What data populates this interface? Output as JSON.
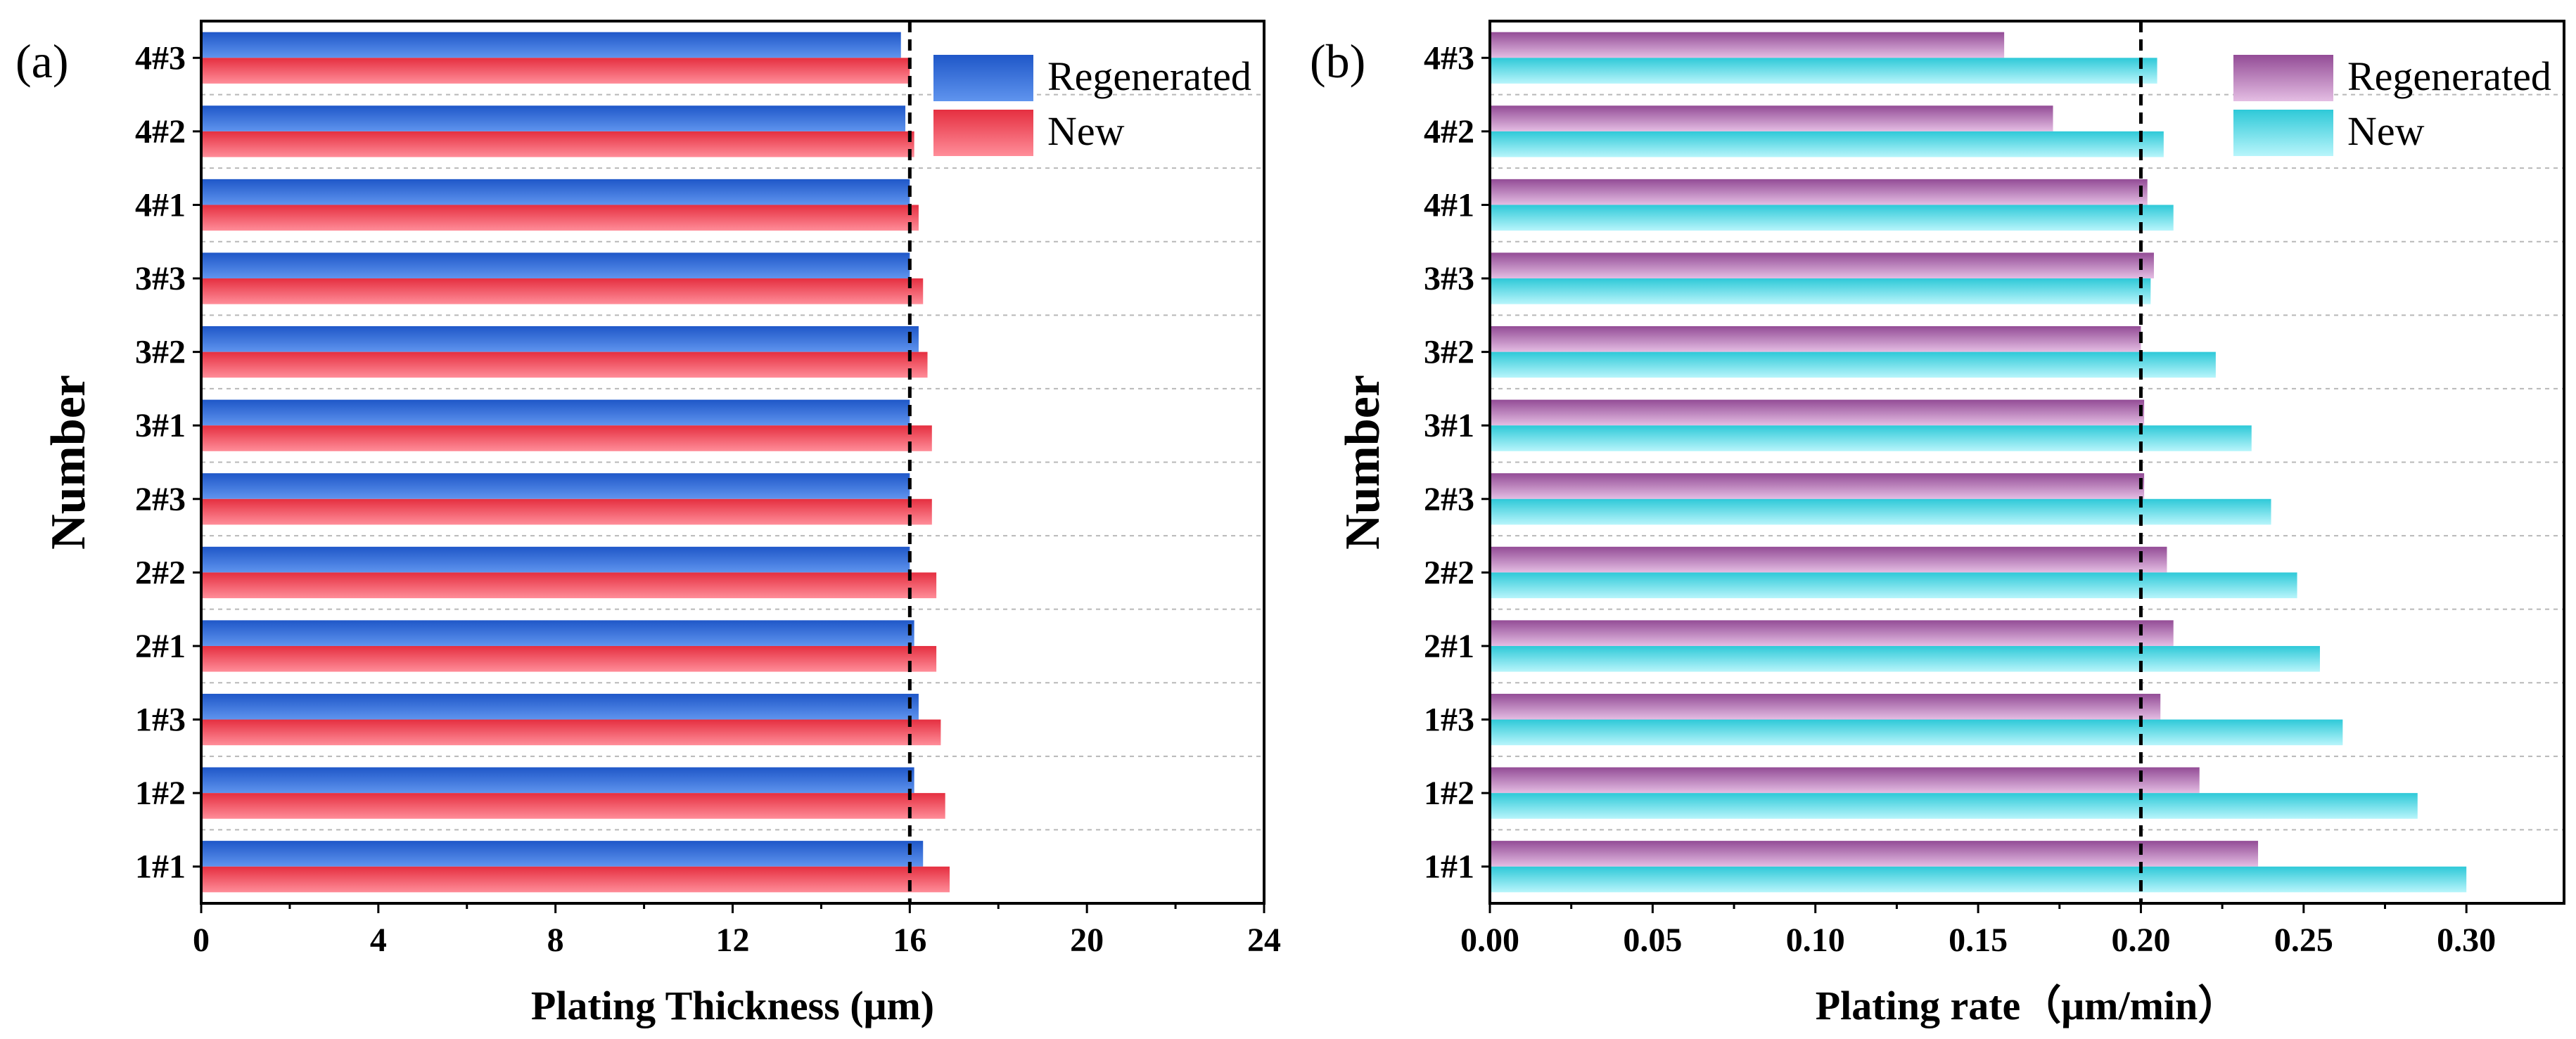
{
  "colors": {
    "regenerated_a": "#1f57c8",
    "regenerated_a_light": "#5f94ee",
    "new_a": "#e52f40",
    "new_a_light": "#ff8d99",
    "regenerated_b": "#934c96",
    "regenerated_b_light": "#e4bde3",
    "new_b": "#2ec9d8",
    "new_b_light": "#b8f5fb",
    "grid": "#b8b8b8",
    "reference_line": "#000000"
  },
  "chart_data": [
    {
      "panel_label": "(a)",
      "type": "bar",
      "orientation": "horizontal",
      "title": "",
      "xlabel": "Plating Thickness (μm)",
      "ylabel": "Number",
      "xlim": [
        0,
        24
      ],
      "xticks": [
        "0",
        "4",
        "8",
        "12",
        "16",
        "20",
        "24"
      ],
      "xtick_values": [
        0,
        4,
        8,
        12,
        16,
        20,
        24
      ],
      "categories": [
        "4#3",
        "4#2",
        "4#1",
        "3#3",
        "3#2",
        "3#1",
        "2#3",
        "2#2",
        "2#1",
        "1#3",
        "1#2",
        "1#1"
      ],
      "series": [
        {
          "name": "Regenerated",
          "values": [
            15.8,
            15.9,
            16.0,
            16.0,
            16.2,
            16.0,
            16.0,
            16.0,
            16.1,
            16.2,
            16.1,
            16.3
          ]
        },
        {
          "name": "New",
          "values": [
            16.0,
            16.1,
            16.2,
            16.3,
            16.4,
            16.5,
            16.5,
            16.6,
            16.6,
            16.7,
            16.8,
            16.9
          ]
        }
      ],
      "reference_line": {
        "axis": "x",
        "value": 16,
        "style": "dashed"
      },
      "legend": {
        "entries": [
          "Regenerated",
          "New"
        ],
        "position": "top-right"
      },
      "grid": {
        "horizontal": true,
        "vertical": false
      }
    },
    {
      "panel_label": "(b)",
      "type": "bar",
      "orientation": "horizontal",
      "title": "",
      "xlabel": "Plating rate（μm/min）",
      "ylabel": "Number",
      "xlim": [
        0,
        0.33
      ],
      "xticks": [
        "0.00",
        "0.05",
        "0.10",
        "0.15",
        "0.20",
        "0.25",
        "0.30"
      ],
      "xtick_values": [
        0,
        0.05,
        0.1,
        0.15,
        0.2,
        0.25,
        0.3
      ],
      "categories": [
        "4#3",
        "4#2",
        "4#1",
        "3#3",
        "3#2",
        "3#1",
        "2#3",
        "2#2",
        "2#1",
        "1#3",
        "1#2",
        "1#1"
      ],
      "series": [
        {
          "name": "Regenerated",
          "values": [
            0.158,
            0.173,
            0.202,
            0.204,
            0.2,
            0.201,
            0.201,
            0.208,
            0.21,
            0.206,
            0.218,
            0.236
          ]
        },
        {
          "name": "New",
          "values": [
            0.205,
            0.207,
            0.21,
            0.203,
            0.223,
            0.234,
            0.24,
            0.248,
            0.255,
            0.262,
            0.285,
            0.3
          ]
        }
      ],
      "reference_line": {
        "axis": "x",
        "value": 0.2,
        "style": "dashed"
      },
      "legend": {
        "entries": [
          "Regenerated",
          "New"
        ],
        "position": "top-right"
      },
      "grid": {
        "horizontal": true,
        "vertical": false
      }
    }
  ]
}
